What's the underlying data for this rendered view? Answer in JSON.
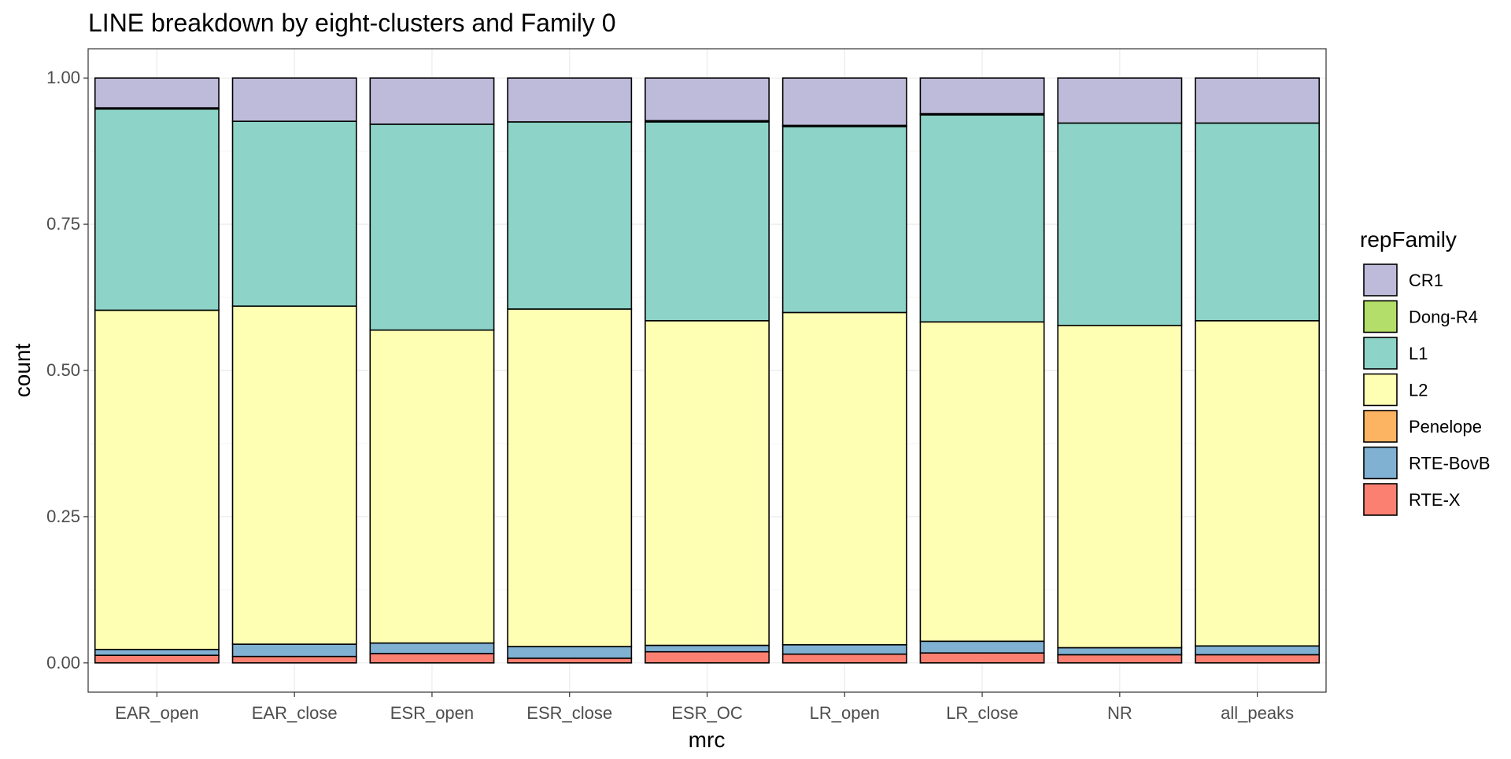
{
  "chart_data": {
    "type": "bar",
    "stacked": true,
    "title": "LINE breakdown by eight-clusters and Family 0",
    "xlabel": "mrc",
    "ylabel": "count",
    "ylim": [
      0,
      1
    ],
    "yticks": [
      "0.00",
      "0.25",
      "0.50",
      "0.75",
      "1.00"
    ],
    "grid": true,
    "legend_position": "right",
    "legend_title": "repFamily",
    "categories": [
      "EAR_open",
      "EAR_close",
      "ESR_open",
      "ESR_close",
      "ESR_OC",
      "LR_open",
      "LR_close",
      "NR",
      "all_peaks"
    ],
    "series": [
      {
        "name": "RTE-X",
        "color": "#FB8072",
        "values": [
          0.013,
          0.011,
          0.016,
          0.008,
          0.019,
          0.015,
          0.017,
          0.014,
          0.014
        ]
      },
      {
        "name": "RTE-BovB",
        "color": "#80B1D3",
        "values": [
          0.01,
          0.021,
          0.018,
          0.02,
          0.011,
          0.016,
          0.02,
          0.012,
          0.015
        ]
      },
      {
        "name": "Penelope",
        "color": "#FDB462",
        "values": [
          0.0,
          0.0,
          0.0,
          0.0,
          0.0,
          0.0,
          0.0,
          0.0,
          0.0
        ]
      },
      {
        "name": "L2",
        "color": "#FFFFB3",
        "values": [
          0.58,
          0.578,
          0.535,
          0.577,
          0.555,
          0.568,
          0.546,
          0.551,
          0.556
        ]
      },
      {
        "name": "L1",
        "color": "#8DD3C7",
        "values": [
          0.344,
          0.316,
          0.352,
          0.32,
          0.34,
          0.318,
          0.354,
          0.346,
          0.338
        ]
      },
      {
        "name": "Dong-R4",
        "color": "#B3DE69",
        "values": [
          0.002,
          0.0,
          0.0,
          0.0,
          0.002,
          0.002,
          0.002,
          0.0,
          0.0
        ]
      },
      {
        "name": "CR1",
        "color": "#BEBADA",
        "values": [
          0.051,
          0.074,
          0.079,
          0.075,
          0.073,
          0.081,
          0.061,
          0.077,
          0.077
        ]
      }
    ],
    "legend_order": [
      "CR1",
      "Dong-R4",
      "L1",
      "L2",
      "Penelope",
      "RTE-BovB",
      "RTE-X"
    ]
  }
}
